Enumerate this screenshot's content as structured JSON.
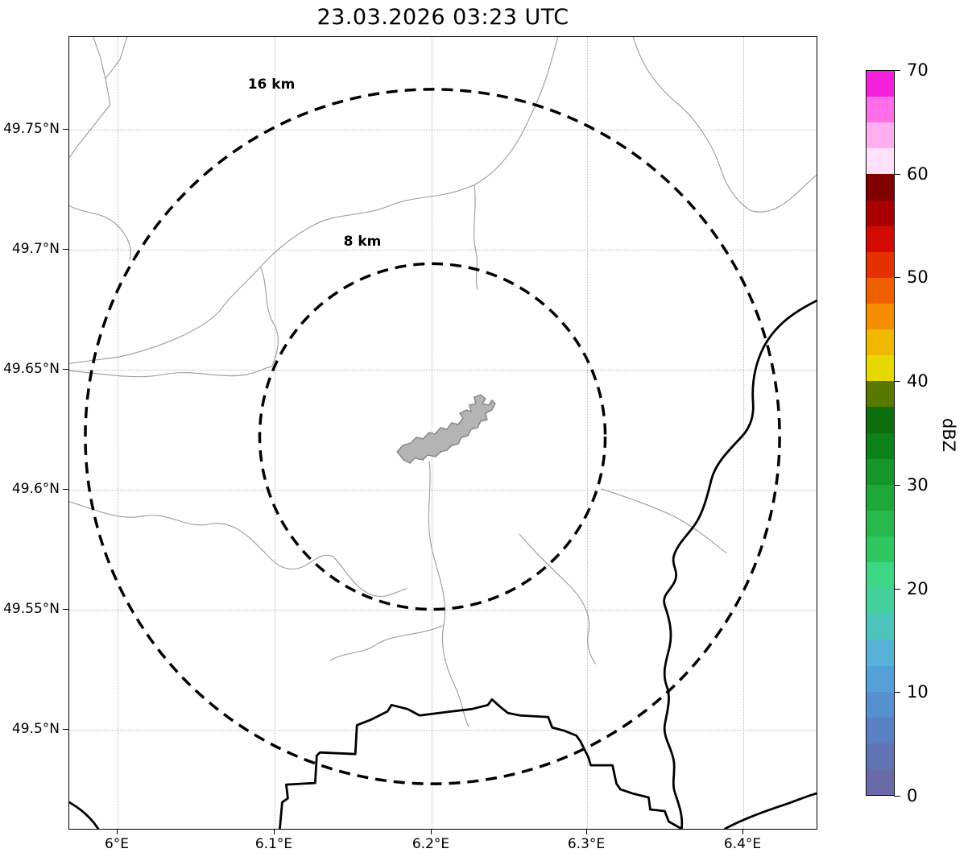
{
  "title": "23.03.2026 03:23 UTC",
  "map": {
    "x_tick_labels": [
      "6°E",
      "6.1°E",
      "6.2°E",
      "6.3°E",
      "6.4°E"
    ],
    "y_tick_labels": [
      "49.75°N",
      "49.7°N",
      "49.65°N",
      "49.6°N",
      "49.55°N",
      "49.5°N"
    ],
    "range_ring_labels": {
      "outer": "16 km",
      "inner": "8 km"
    },
    "boundary_color": "#9a9a9a",
    "border_color": "#000000",
    "city_fill": "#b4b4b4",
    "city_stroke": "#878787",
    "ring_color": "#000000"
  },
  "colorbar": {
    "label": "dBZ",
    "tick_labels": [
      "70",
      "60",
      "50",
      "40",
      "30",
      "20",
      "10",
      "0"
    ],
    "min": 0,
    "max": 70,
    "colors_bottom_to_top": [
      "#6a6aa8",
      "#6273b4",
      "#5a80c4",
      "#5590d0",
      "#55a0d8",
      "#58b2d8",
      "#4cc4bc",
      "#44d09e",
      "#3cd684",
      "#30c660",
      "#28b84c",
      "#1ea838",
      "#169628",
      "#0e821a",
      "#0c6e0c",
      "#5a7800",
      "#e6d800",
      "#f0b800",
      "#f58e00",
      "#f06000",
      "#e63000",
      "#d20a00",
      "#a80000",
      "#800000",
      "#ffe1fa",
      "#ffaff0",
      "#ff6ee8",
      "#f520dc"
    ]
  }
}
